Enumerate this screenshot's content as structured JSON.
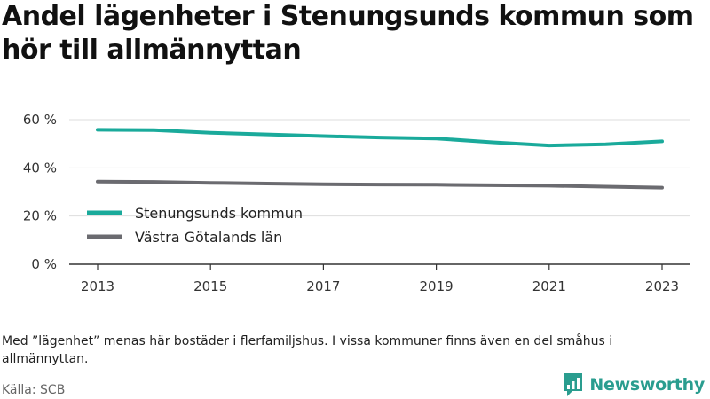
{
  "title": "Andel lägenheter i Stenungsunds kommun som hör till allmännyttan",
  "note": "Med ”lägenhet” menas här bostäder i flerfamiljshus. I vissa kommuner finns även en del småhus i allmännyttan.",
  "source": "Källa: SCB",
  "brand": {
    "name": "Newsworthy",
    "color": "#2a9d8f"
  },
  "chart_data": {
    "type": "line",
    "x": [
      2013,
      2014,
      2015,
      2016,
      2017,
      2018,
      2019,
      2020,
      2021,
      2022,
      2023
    ],
    "xticks": [
      "2013",
      "2015",
      "2017",
      "2019",
      "2021",
      "2023"
    ],
    "yticks": [
      "0 %",
      "20 %",
      "40 %",
      "60 %"
    ],
    "ylim": [
      0,
      60
    ],
    "grid": true,
    "legend_position": "bottom-left",
    "series": [
      {
        "name": "Stenungsunds kommun",
        "color": "#1aaa9b",
        "values": [
          55.8,
          55.7,
          54.6,
          53.9,
          53.2,
          52.6,
          52.2,
          50.6,
          49.3,
          49.8,
          51.0
        ]
      },
      {
        "name": "Västra Götalands län",
        "color": "#6b6b70",
        "values": [
          34.3,
          34.2,
          33.8,
          33.5,
          33.2,
          33.1,
          33.0,
          32.8,
          32.6,
          32.2,
          31.8
        ]
      }
    ]
  }
}
